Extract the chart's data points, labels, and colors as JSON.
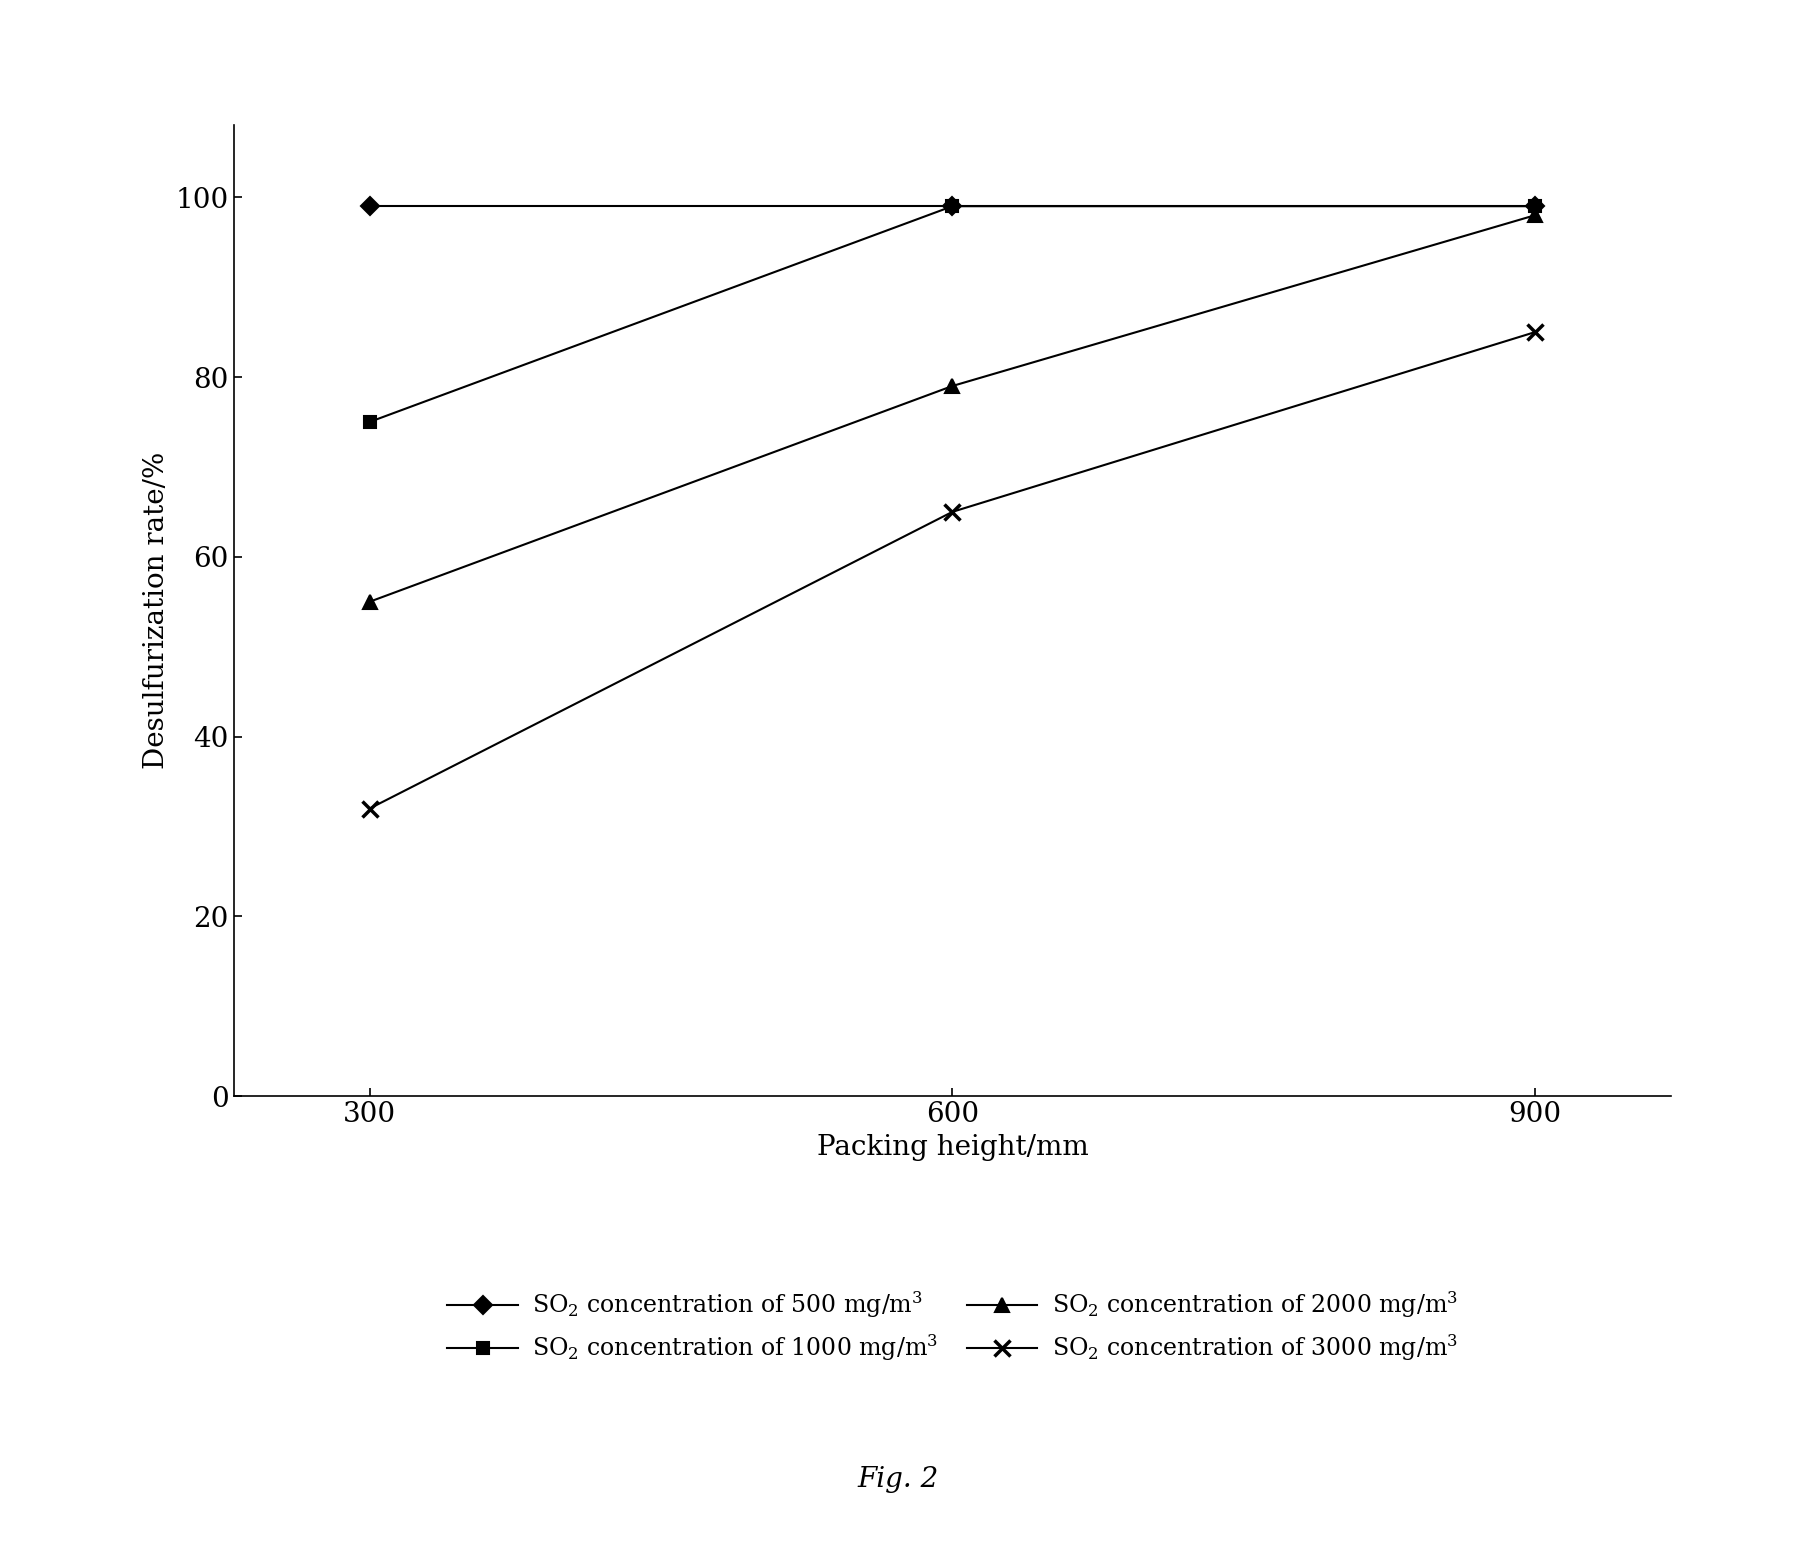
{
  "x": [
    300,
    600,
    900
  ],
  "series": [
    {
      "label": "$\\mathrm{SO_2}$ concentration of 500 mg/m$^3$",
      "values": [
        99,
        99,
        99
      ],
      "marker": "D",
      "markersize": 9,
      "markerfacecolor": "black",
      "markeredgecolor": "black",
      "markeredgewidth": 1.5,
      "linewidth": 1.5
    },
    {
      "label": "$\\mathrm{SO_2}$ concentration of 1000 mg/m$^3$",
      "values": [
        75,
        99,
        99
      ],
      "marker": "s",
      "markersize": 9,
      "markerfacecolor": "black",
      "markeredgecolor": "black",
      "markeredgewidth": 1.5,
      "linewidth": 1.5
    },
    {
      "label": "$\\mathrm{SO_2}$ concentration of 2000 mg/m$^3$",
      "values": [
        55,
        79,
        98
      ],
      "marker": "^",
      "markersize": 10,
      "markerfacecolor": "black",
      "markeredgecolor": "black",
      "markeredgewidth": 1.5,
      "linewidth": 1.5
    },
    {
      "label": "$\\mathrm{SO_2}$ concentration of 3000 mg/m$^3$",
      "values": [
        32,
        65,
        85
      ],
      "marker": "x",
      "markersize": 12,
      "markerfacecolor": "none",
      "markeredgecolor": "black",
      "markeredgewidth": 2.5,
      "linewidth": 1.5
    }
  ],
  "xlabel": "Packing height/mm",
  "ylabel": "Desulfurization rate/%",
  "yticks": [
    0,
    20,
    40,
    60,
    80,
    100
  ],
  "xticks": [
    300,
    600,
    900
  ],
  "xlim_left": 230,
  "xlim_right": 970,
  "ylim_bottom": 0,
  "ylim_top": 108,
  "fig_caption": "Fig. 2",
  "label_fontsize": 20,
  "tick_fontsize": 20,
  "legend_fontsize": 17
}
